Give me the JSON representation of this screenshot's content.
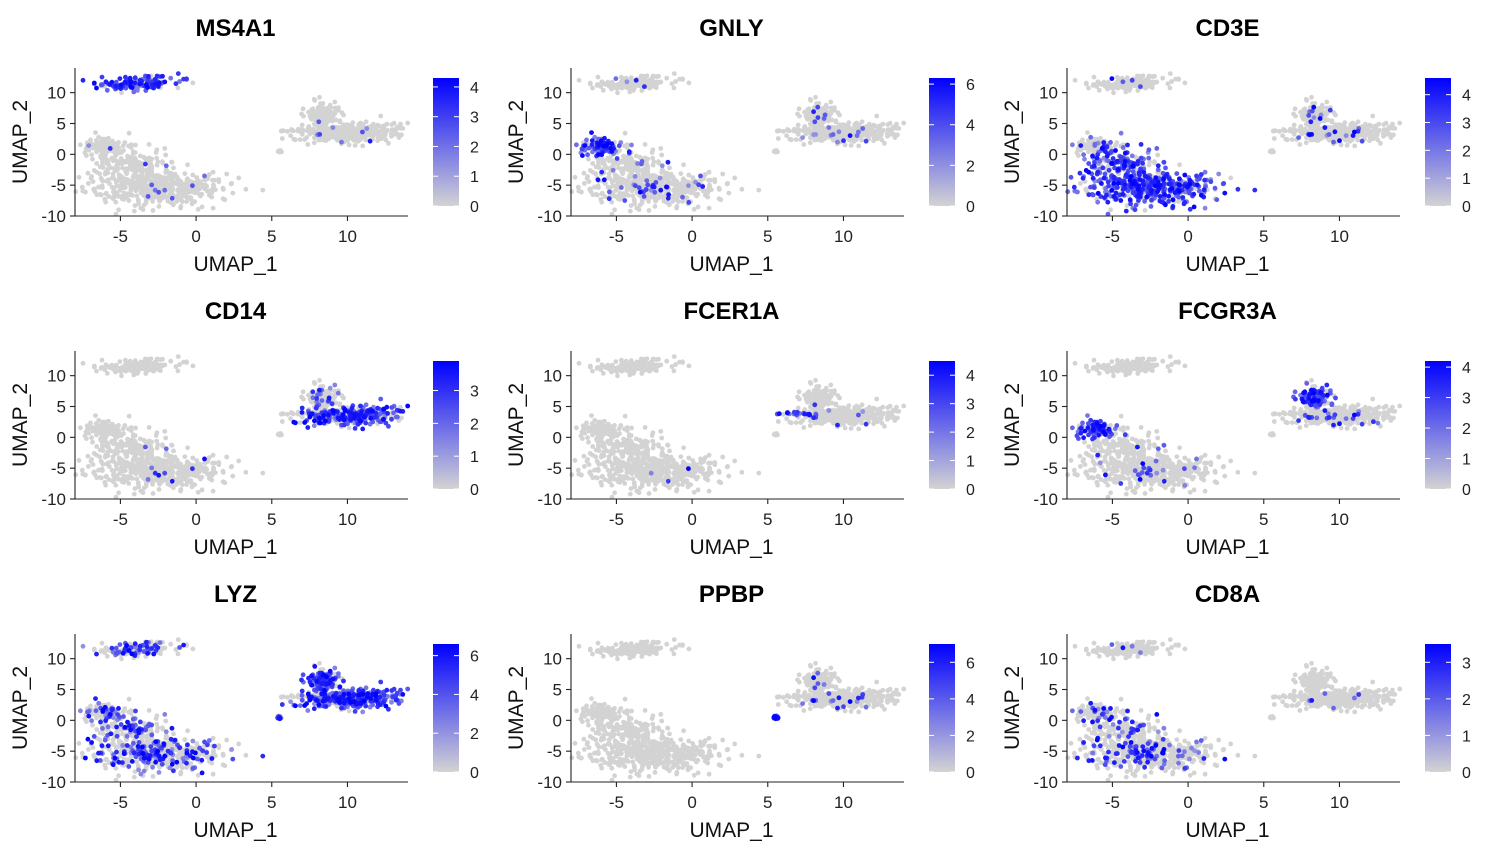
{
  "figure_title": "",
  "colors": {
    "low": "#d3d3d3",
    "high": "#0000ff"
  },
  "chart_data": [
    {
      "type": "scatter",
      "title": "MS4A1",
      "xlabel": "UMAP_1",
      "ylabel": "UMAP_2",
      "xlim": [
        -8,
        14
      ],
      "ylim": [
        -10,
        14
      ],
      "xticks": [
        -5,
        0,
        5,
        10
      ],
      "yticks": [
        -10,
        -5,
        0,
        5,
        10
      ],
      "legend_max": 4.3,
      "legend_ticks": [
        0,
        1,
        2,
        3,
        4
      ],
      "expression": {
        "B": 0.75,
        "NK": 0.02,
        "T": 0.02,
        "Mono": 0.02,
        "CD14Mono": 0.02,
        "Platelet": 0.0
      }
    },
    {
      "type": "scatter",
      "title": "GNLY",
      "xlabel": "UMAP_1",
      "ylabel": "UMAP_2",
      "xlim": [
        -8,
        14
      ],
      "ylim": [
        -10,
        14
      ],
      "xticks": [
        -5,
        0,
        5,
        10
      ],
      "yticks": [
        -10,
        -5,
        0,
        5,
        10
      ],
      "legend_max": 6.3,
      "legend_ticks": [
        0,
        2,
        4,
        6
      ],
      "expression": {
        "B": 0.02,
        "NK": 0.8,
        "T": 0.08,
        "Mono": 0.05,
        "CD14Mono": 0.03,
        "Platelet": 0.0
      }
    },
    {
      "type": "scatter",
      "title": "CD3E",
      "xlabel": "UMAP_1",
      "ylabel": "UMAP_2",
      "xlim": [
        -8,
        14
      ],
      "ylim": [
        -10,
        14
      ],
      "xticks": [
        -5,
        0,
        5,
        10
      ],
      "yticks": [
        -10,
        -5,
        0,
        5,
        10
      ],
      "legend_max": 4.6,
      "legend_ticks": [
        0,
        1,
        2,
        3,
        4
      ],
      "expression": {
        "B": 0.02,
        "NK": 0.12,
        "T": 0.72,
        "Mono": 0.06,
        "CD14Mono": 0.04,
        "Platelet": 0.0
      }
    },
    {
      "type": "scatter",
      "title": "CD14",
      "xlabel": "UMAP_1",
      "ylabel": "UMAP_2",
      "xlim": [
        -8,
        14
      ],
      "ylim": [
        -10,
        14
      ],
      "xticks": [
        -5,
        0,
        5,
        10
      ],
      "yticks": [
        -10,
        -5,
        0,
        5,
        10
      ],
      "legend_max": 3.9,
      "legend_ticks": [
        0,
        1,
        2,
        3
      ],
      "expression": {
        "B": 0.0,
        "NK": 0.0,
        "T": 0.02,
        "Mono": 0.08,
        "CD14Mono": 0.72,
        "Platelet": 0.0
      }
    },
    {
      "type": "scatter",
      "title": "FCER1A",
      "xlabel": "UMAP_1",
      "ylabel": "UMAP_2",
      "xlim": [
        -8,
        14
      ],
      "ylim": [
        -10,
        14
      ],
      "xticks": [
        -5,
        0,
        5,
        10
      ],
      "yticks": [
        -10,
        -5,
        0,
        5,
        10
      ],
      "legend_max": 4.5,
      "legend_ticks": [
        0,
        1,
        2,
        3,
        4
      ],
      "expression": {
        "B": 0.0,
        "NK": 0.0,
        "T": 0.01,
        "Mono": 0.02,
        "CD14Mono": 0.02,
        "DC": 0.8,
        "Platelet": 0.0
      }
    },
    {
      "type": "scatter",
      "title": "FCGR3A",
      "xlabel": "UMAP_1",
      "ylabel": "UMAP_2",
      "xlim": [
        -8,
        14
      ],
      "ylim": [
        -10,
        14
      ],
      "xticks": [
        -5,
        0,
        5,
        10
      ],
      "yticks": [
        -10,
        -5,
        0,
        5,
        10
      ],
      "legend_max": 4.2,
      "legend_ticks": [
        0,
        1,
        2,
        3,
        4
      ],
      "expression": {
        "B": 0.0,
        "NK": 0.7,
        "T": 0.04,
        "Mono": 0.8,
        "CD14Mono": 0.06,
        "Platelet": 0.0
      }
    },
    {
      "type": "scatter",
      "title": "LYZ",
      "xlabel": "UMAP_1",
      "ylabel": "UMAP_2",
      "xlim": [
        -8,
        14
      ],
      "ylim": [
        -10,
        14
      ],
      "xticks": [
        -5,
        0,
        5,
        10
      ],
      "yticks": [
        -10,
        -5,
        0,
        5,
        10
      ],
      "legend_max": 6.6,
      "legend_ticks": [
        0,
        2,
        4,
        6
      ],
      "expression": {
        "B": 0.3,
        "NK": 0.3,
        "T": 0.3,
        "Mono": 0.85,
        "CD14Mono": 0.9,
        "Platelet": 0.6
      }
    },
    {
      "type": "scatter",
      "title": "PPBP",
      "xlabel": "UMAP_1",
      "ylabel": "UMAP_2",
      "xlim": [
        -8,
        14
      ],
      "ylim": [
        -10,
        14
      ],
      "xticks": [
        -5,
        0,
        5,
        10
      ],
      "yticks": [
        -10,
        -5,
        0,
        5,
        10
      ],
      "legend_max": 7.0,
      "legend_ticks": [
        0,
        2,
        4,
        6
      ],
      "expression": {
        "B": 0.0,
        "NK": 0.0,
        "T": 0.0,
        "Mono": 0.04,
        "CD14Mono": 0.04,
        "Platelet": 0.95
      }
    },
    {
      "type": "scatter",
      "title": "CD8A",
      "xlabel": "UMAP_1",
      "ylabel": "UMAP_2",
      "xlim": [
        -8,
        14
      ],
      "ylim": [
        -10,
        14
      ],
      "xticks": [
        -5,
        0,
        5,
        10
      ],
      "yticks": [
        -10,
        -5,
        0,
        5,
        10
      ],
      "legend_max": 3.5,
      "legend_ticks": [
        0,
        1,
        2,
        3
      ],
      "expression": {
        "B": 0.02,
        "NK": 0.15,
        "T": 0.18,
        "Mono": 0.01,
        "CD14Mono": 0.01,
        "Platelet": 0.0
      }
    }
  ]
}
